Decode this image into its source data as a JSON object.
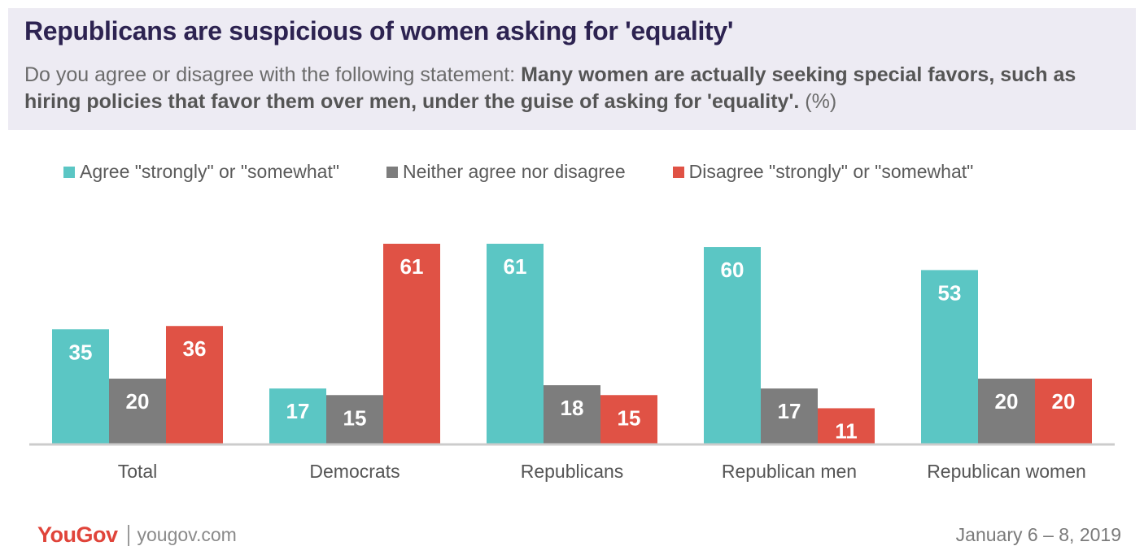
{
  "header": {
    "title": "Republicans are suspicious of women asking for 'equality'",
    "subtitle_prefix": "Do you agree or disagree with the following statement: ",
    "subtitle_bold": "Many women are actually seeking special favors, such as hiring policies that favor them over men, under the guise of asking for 'equality'.",
    "subtitle_suffix": " (%)"
  },
  "colors": {
    "agree": "#5bc6c4",
    "neither": "#7d7d7d",
    "disagree": "#e05245"
  },
  "chart_data": {
    "type": "bar",
    "categories": [
      "Total",
      "Democrats",
      "Republicans",
      "Republican men",
      "Republican women"
    ],
    "series": [
      {
        "name": "Agree \"strongly\" or \"somewhat\"",
        "values": [
          35,
          17,
          61,
          60,
          53
        ]
      },
      {
        "name": "Neither agree nor disagree",
        "values": [
          20,
          15,
          18,
          17,
          20
        ]
      },
      {
        "name": "Disagree \"strongly\" or \"somewhat\"",
        "values": [
          36,
          61,
          15,
          11,
          20
        ]
      }
    ],
    "ylim": [
      0,
      61
    ],
    "legend": "top",
    "grid": false
  },
  "footer": {
    "logo": "YouGov",
    "url": "yougov.com",
    "date": "January 6 – 8, 2019"
  }
}
